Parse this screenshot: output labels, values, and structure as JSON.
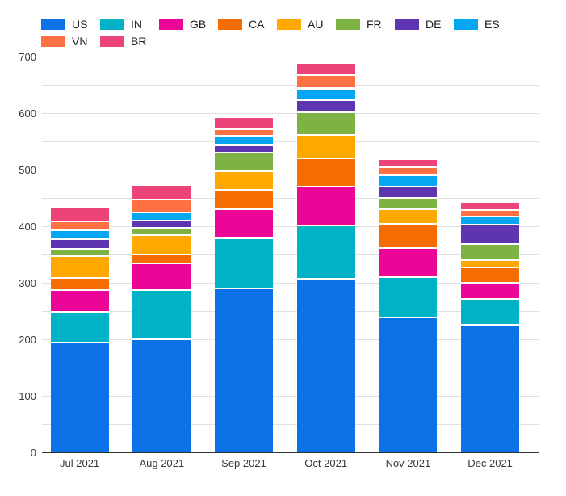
{
  "chart_data": {
    "type": "bar",
    "stacked": true,
    "title": "",
    "xlabel": "",
    "ylabel": "",
    "legend_position": "top-left",
    "grid": true,
    "ylim": [
      0,
      700
    ],
    "y_minor_step": 50,
    "y_major_step": 100,
    "y_tick_labels": [
      "0",
      "100",
      "200",
      "300",
      "400",
      "500",
      "600",
      "700"
    ],
    "categories": [
      "Jul 2021",
      "Aug 2021",
      "Sep 2021",
      "Oct 2021",
      "Nov 2021",
      "Dec 2021"
    ],
    "series": [
      {
        "name": "US",
        "color": "#0b72e8",
        "values": [
          196,
          202,
          292,
          308,
          240,
          227
        ]
      },
      {
        "name": "IN",
        "color": "#00b3c5",
        "values": [
          54,
          86,
          88,
          95,
          72,
          46
        ]
      },
      {
        "name": "GB",
        "color": "#ec0698",
        "values": [
          39,
          48,
          51,
          69,
          51,
          29
        ]
      },
      {
        "name": "CA",
        "color": "#f56c00",
        "values": [
          21,
          16,
          35,
          50,
          43,
          27
        ]
      },
      {
        "name": "AU",
        "color": "#fea800",
        "values": [
          38,
          34,
          33,
          41,
          25,
          13
        ]
      },
      {
        "name": "FR",
        "color": "#7cb342",
        "values": [
          13,
          13,
          32,
          40,
          21,
          28
        ]
      },
      {
        "name": "DE",
        "color": "#5e35b1",
        "values": [
          17,
          13,
          14,
          21,
          19,
          34
        ]
      },
      {
        "name": "ES",
        "color": "#06a7f2",
        "values": [
          16,
          14,
          17,
          21,
          21,
          14
        ]
      },
      {
        "name": "VN",
        "color": "#ff7043",
        "values": [
          16,
          22,
          11,
          23,
          14,
          12
        ]
      },
      {
        "name": "BR",
        "color": "#ec4379",
        "values": [
          23,
          24,
          18,
          19,
          11,
          12
        ]
      }
    ],
    "totals": [
      433,
      472,
      591,
      687,
      517,
      442
    ]
  },
  "colors": {
    "gridline": "#e0e0e0",
    "axis_line": "#333333",
    "tick_text": "#383838",
    "legend_text": "#1f1f1f",
    "background": "#ffffff"
  }
}
